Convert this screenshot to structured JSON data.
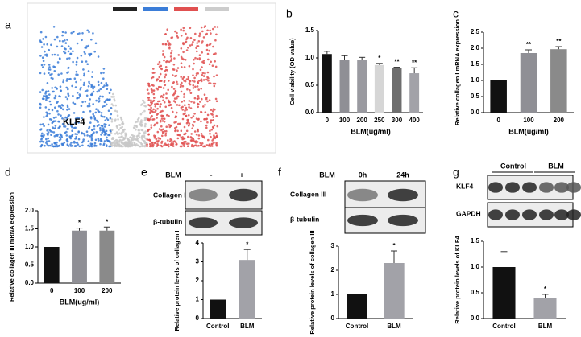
{
  "volcano": {
    "panel": "a",
    "label": "KLF4"
  },
  "chart_data": [
    {
      "type": "bar",
      "panel": "b",
      "ylabel": "Cell viability (OD value)",
      "xlabel": "BLM(ug/ml)",
      "categories": [
        "0",
        "100",
        "200",
        "250",
        "300",
        "400"
      ],
      "values": [
        1.07,
        0.97,
        0.96,
        0.87,
        0.81,
        0.72
      ],
      "errors": [
        0.05,
        0.07,
        0.05,
        0.03,
        0.02,
        0.1
      ],
      "annotations": [
        null,
        null,
        null,
        "*",
        "**",
        "**"
      ],
      "colors": [
        "#111111",
        "#8f8f95",
        "#9a9aa0",
        "#d6d6d6",
        "#6e6e6e",
        "#a2a2a8"
      ],
      "ylim": [
        0,
        1.5
      ],
      "yticks": [
        {
          "value": 0,
          "label": "0.0"
        },
        {
          "value": 0.5,
          "label": "0.5"
        },
        {
          "value": 1,
          "label": "1.0"
        },
        {
          "value": 1.5,
          "label": "1.5"
        }
      ]
    },
    {
      "type": "bar",
      "panel": "c",
      "ylabel": "Relative collagen I mRNA expression",
      "xlabel": "BLM(ug/ml)",
      "categories": [
        "0",
        "100",
        "200"
      ],
      "values": [
        1.0,
        1.85,
        1.97
      ],
      "errors": [
        0,
        0.1,
        0.08
      ],
      "annotations": [
        null,
        "**",
        "**"
      ],
      "colors": [
        "#111111",
        "#8f8f95",
        "#8a8a8a"
      ],
      "ylim": [
        0,
        2.5
      ],
      "yticks": [
        {
          "value": 0,
          "label": "0.0"
        },
        {
          "value": 0.5,
          "label": "0.5"
        },
        {
          "value": 1,
          "label": "1.0"
        },
        {
          "value": 1.5,
          "label": "1.5"
        },
        {
          "value": 2,
          "label": "2.0"
        },
        2.5
      ]
    },
    {
      "type": "bar",
      "panel": "d",
      "ylabel": "Relative collagen III mRNA expression",
      "xlabel": "BLM(ug/ml)",
      "categories": [
        "0",
        "100",
        "200"
      ],
      "values": [
        1.0,
        1.45,
        1.45
      ],
      "errors": [
        0,
        0.07,
        0.1
      ],
      "annotations": [
        null,
        "*",
        "*"
      ],
      "colors": [
        "#111111",
        "#8f8f95",
        "#8a8a8a"
      ],
      "ylim": [
        0,
        2
      ],
      "yticks": [
        {
          "value": 0,
          "label": "0.0"
        },
        {
          "value": 0.5,
          "label": "0.5"
        },
        {
          "value": 1,
          "label": "1.0"
        },
        {
          "value": 1.5,
          "label": "1.5"
        },
        {
          "value": 2,
          "label": "2.0"
        }
      ]
    },
    {
      "type": "bar",
      "ylabel": "Relative protein levels of collagen I",
      "categories": [
        "Control",
        "BLM"
      ],
      "values": [
        1.0,
        3.1
      ],
      "errors": [
        0,
        0.55
      ],
      "annotations": [
        null,
        "*"
      ],
      "colors": [
        "#111111",
        "#a2a2a8"
      ],
      "ylim": [
        0,
        4
      ],
      "yticks": [
        0,
        1,
        2,
        3,
        4
      ]
    },
    {
      "type": "bar",
      "ylabel": "Relative protein levels of collagen III",
      "categories": [
        "Control",
        "BLM"
      ],
      "values": [
        1.0,
        2.3
      ],
      "errors": [
        0,
        0.5
      ],
      "annotations": [
        null,
        "*"
      ],
      "colors": [
        "#111111",
        "#a2a2a8"
      ],
      "ylim": [
        0,
        3
      ],
      "yticks": [
        0,
        1,
        2,
        3
      ]
    },
    {
      "type": "bar",
      "ylabel": "Relative protein levels of KLF4",
      "categories": [
        "Control",
        "BLM"
      ],
      "values": [
        1.0,
        0.4
      ],
      "errors": [
        0.3,
        0.07
      ],
      "annotations": [
        null,
        "*"
      ],
      "colors": [
        "#111111",
        "#a2a2a8"
      ],
      "ylim": [
        0,
        1.5
      ],
      "yticks": [
        {
          "value": 0,
          "label": "0.0"
        },
        {
          "value": 0.5,
          "label": "0.5"
        },
        {
          "value": 1,
          "label": "1.0"
        },
        {
          "value": 1.5,
          "label": "1.5"
        }
      ]
    }
  ],
  "blots": [
    {
      "panel": "e",
      "header": "BLM",
      "columns": [
        "-",
        "+"
      ],
      "rows": [
        "Collagen I",
        "β-tubulin"
      ]
    },
    {
      "panel": "f",
      "header": "BLM",
      "columns": [
        "0h",
        "24h"
      ],
      "rows": [
        "Collagen III",
        "β-tubulin"
      ]
    },
    {
      "panel": "g",
      "columns": [
        "Control",
        "BLM"
      ],
      "rows": [
        "KLF4",
        "GAPDH"
      ]
    }
  ]
}
